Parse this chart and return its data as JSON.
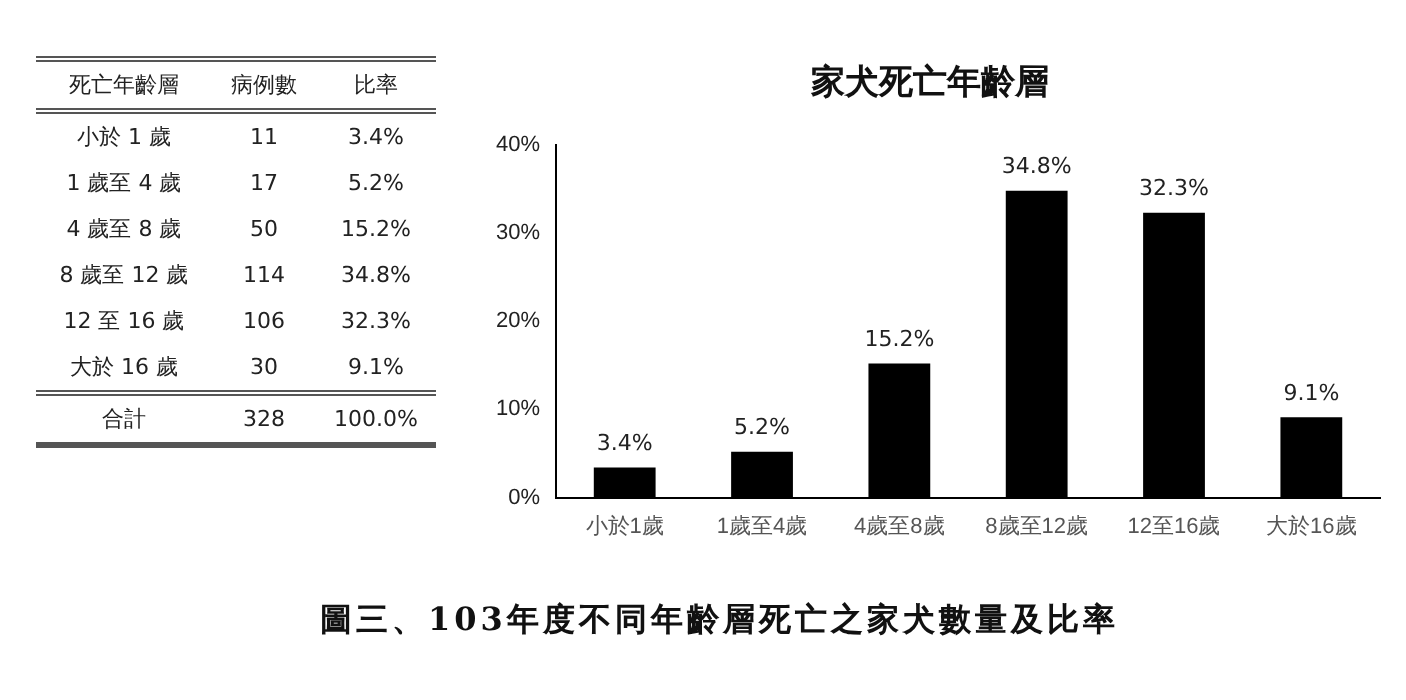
{
  "chart_data": [
    {
      "type": "other",
      "annotations": [
        "死亡年齡層",
        "病例數",
        "比率",
        "小於 1 歲",
        "11",
        "3.4%",
        "1 歲至 4 歲",
        "17",
        "5.2%",
        "4 歲至 8 歲",
        "50",
        "15.2%",
        "8 歲至 12 歲",
        "114",
        "34.8%",
        "12 至 16 歲",
        "106",
        "32.3%",
        "大於 16 歲",
        "30",
        "9.1%",
        "合計",
        "328",
        "100.0%"
      ]
    },
    {
      "type": "bar",
      "title": "家犬死亡年齡層",
      "categories": [
        "小於1歲",
        "1歲至4歲",
        "4歲至8歲",
        "8歲至12歲",
        "12至16歲",
        "大於16歲"
      ],
      "values": [
        3.4,
        5.2,
        15.2,
        34.8,
        32.3,
        9.1
      ],
      "value_labels": [
        "3.4%",
        "5.2%",
        "15.2%",
        "34.8%",
        "32.3%",
        "9.1%"
      ],
      "color": "#000000",
      "ylim": [
        0,
        40
      ],
      "yticks": [
        {
          "value": 0,
          "label": "0%"
        },
        {
          "value": 10,
          "label": "10%"
        },
        {
          "value": 20,
          "label": "20%"
        },
        {
          "value": 30,
          "label": "30%"
        },
        {
          "value": 40,
          "label": "40%"
        }
      ],
      "grid": false,
      "legend": false,
      "annotations": [
        "圖三、103年度不同年齡層死亡之家犬數量及比率"
      ]
    }
  ]
}
